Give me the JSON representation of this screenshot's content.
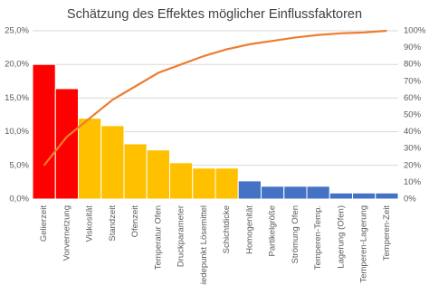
{
  "chart_data": {
    "type": "bar",
    "title": "Schätzung des Effektes möglicher Einflussfaktoren",
    "categories": [
      "Gelierzeit",
      "Vorvernetzung",
      "Viskosität",
      "Standzeit",
      "Ofenzeit",
      "Temperatur Ofen",
      "Druckparameter",
      "Siedepunkt Lösemittel",
      "Schichtdicke",
      "Homogenität",
      "Partikelgröße",
      "Strömung Ofen",
      "Temperen-Temp.",
      "Lagerung (Ofen)",
      "Temperen-Lagerung",
      "Temperen-Zeit"
    ],
    "series": [
      {
        "type": "bar",
        "colors": [
          "#ff0000",
          "#ff0000",
          "#ffc000",
          "#ffc000",
          "#ffc000",
          "#ffc000",
          "#ffc000",
          "#ffc000",
          "#ffc000",
          "#4472c4",
          "#4472c4",
          "#4472c4",
          "#4472c4",
          "#4472c4",
          "#4472c4",
          "#4472c4"
        ],
        "values": [
          20.0,
          16.4,
          12.0,
          10.9,
          8.2,
          7.3,
          5.4,
          4.6,
          4.6,
          2.7,
          1.9,
          1.9,
          1.9,
          0.9,
          0.9,
          0.9
        ]
      },
      {
        "type": "line",
        "axis": "y2",
        "color": "#ed7d31",
        "values": [
          20,
          37,
          48,
          59,
          67,
          75,
          80,
          85,
          89,
          92,
          94,
          96,
          97.5,
          98.5,
          99,
          100
        ]
      }
    ],
    "ylim": [
      0,
      25
    ],
    "yticks": [
      {
        "value": 0,
        "label": "0,0%"
      },
      {
        "value": 5,
        "label": "5,0%"
      },
      {
        "value": 10,
        "label": "10,0%"
      },
      {
        "value": 15,
        "label": "15,0%"
      },
      {
        "value": 20,
        "label": "20,0%"
      },
      {
        "value": 25,
        "label": "25,0%"
      }
    ],
    "y2lim": [
      0,
      100
    ],
    "y2ticks": [
      {
        "value": 0,
        "label": "0%"
      },
      {
        "value": 10,
        "label": "10%"
      },
      {
        "value": 20,
        "label": "20%"
      },
      {
        "value": 30,
        "label": "30%"
      },
      {
        "value": 40,
        "label": "40%"
      },
      {
        "value": 50,
        "label": "50%"
      },
      {
        "value": 60,
        "label": "60%"
      },
      {
        "value": 70,
        "label": "70%"
      },
      {
        "value": 80,
        "label": "80%"
      },
      {
        "value": 90,
        "label": "90%"
      },
      {
        "value": 100,
        "label": "100%"
      }
    ],
    "grid": true
  }
}
